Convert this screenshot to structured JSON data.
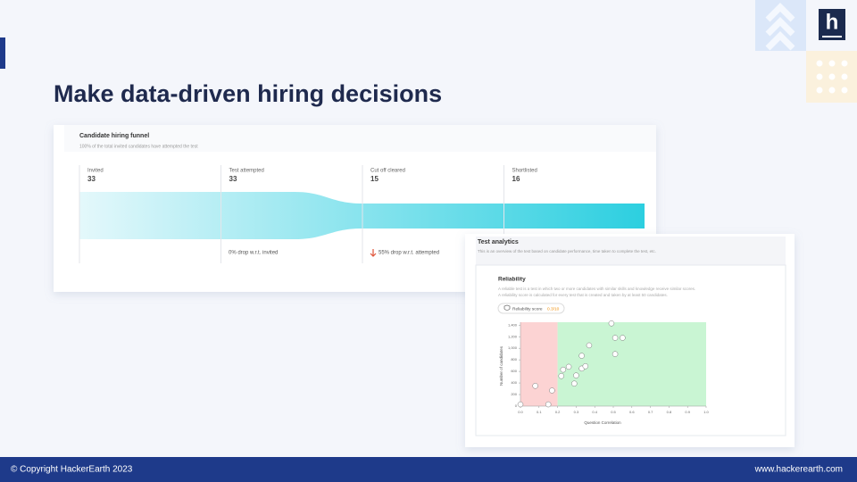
{
  "header": {
    "title": "Make data-driven hiring decisions"
  },
  "logo": {
    "letter": "h"
  },
  "funnel_card": {
    "title": "Candidate hiring funnel",
    "subtitle": "100% of the total invited candidates have attempted the test",
    "stages": [
      {
        "name": "Invited",
        "value": 33
      },
      {
        "name": "Test attempted",
        "value": 33
      },
      {
        "name": "Cut off cleared",
        "value": 15
      },
      {
        "name": "Shortlisted",
        "value": 16
      }
    ],
    "notes": [
      "0% drop w.r.t. invited",
      "55% drop w.r.t. attempted"
    ]
  },
  "analytics_card": {
    "title": "Test analytics",
    "description": "This is an overview of the test based on candidate performance, time taken to complete the test, etc.",
    "reliability": {
      "title": "Reliability",
      "description": [
        "A reliable test is a test in which two or more candidates with similar skills and knowledge receive similar scores.",
        "A reliability score is calculated for every test that is created and taken by at least 50 candidates."
      ],
      "badge_label": "Reliability score",
      "badge_value": "0.3/10"
    }
  },
  "chart_data": {
    "type": "scatter",
    "xlabel": "Question Correlation",
    "ylabel": "Number of candidates",
    "x": [
      0.0,
      0.08,
      0.15,
      0.17,
      0.22,
      0.23,
      0.26,
      0.29,
      0.3,
      0.33,
      0.33,
      0.35,
      0.37,
      0.49,
      0.51,
      0.55,
      0.51
    ],
    "values": [
      30,
      350,
      30,
      270,
      520,
      630,
      680,
      390,
      530,
      870,
      650,
      690,
      1050,
      1430,
      1180,
      1180,
      900
    ],
    "color": "#ffffff",
    "xlim": [
      0,
      1
    ],
    "ylim": [
      0,
      1450
    ],
    "xticks": [
      {
        "value": 0,
        "label": "0.0"
      },
      0.1,
      0.2,
      0.3,
      0.4,
      0.5,
      0.6,
      0.7,
      0.8,
      0.9,
      {
        "value": 1,
        "label": "1.0"
      }
    ],
    "yticks": [
      0,
      200,
      400,
      600,
      800,
      {
        "value": 1000,
        "label": "1,000"
      },
      {
        "value": 1200,
        "label": "1,200"
      },
      {
        "value": 1400,
        "label": "1,400"
      }
    ],
    "zones": [
      {
        "from": 0,
        "to": 0.2,
        "color": "#fcd3d3"
      },
      {
        "from": 0.2,
        "to": 1,
        "color": "#c9f5d3"
      }
    ]
  },
  "footer": {
    "copyright": "© Copyright HackerEarth 2023",
    "website": "www.hackerearth.com"
  }
}
